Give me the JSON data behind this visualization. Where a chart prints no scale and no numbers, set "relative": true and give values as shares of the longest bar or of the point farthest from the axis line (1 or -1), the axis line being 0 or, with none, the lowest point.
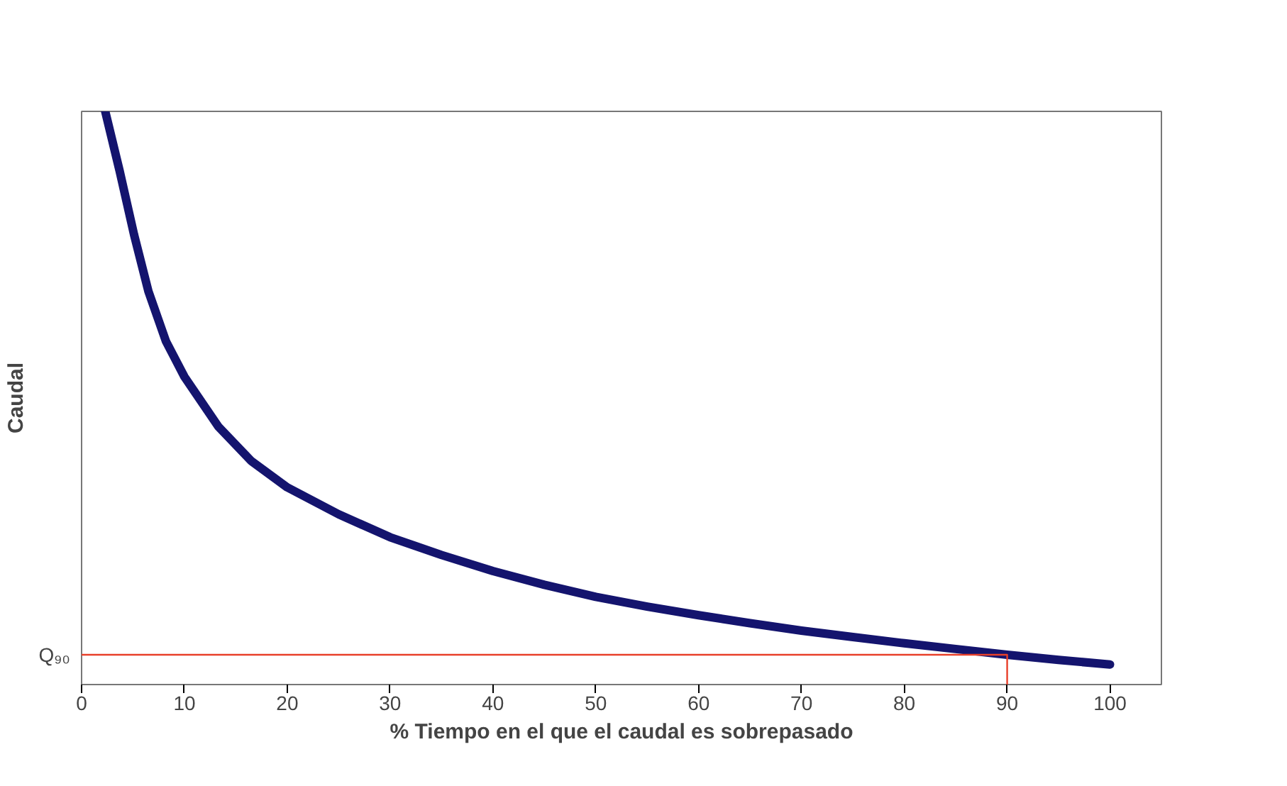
{
  "chart_data": {
    "type": "line",
    "xlabel": "% Tiempo en el que el caudal es sobrepasado",
    "ylabel": "Caudal",
    "relative": true,
    "xlim": [
      0,
      105
    ],
    "xticks": [
      0,
      10,
      20,
      30,
      40,
      50,
      60,
      70,
      80,
      90,
      100
    ],
    "grid": false,
    "marker": "none",
    "line_style": "solid",
    "series": [
      {
        "color": "#14146e",
        "x": [
          2.3,
          3.7,
          5.1,
          6.5,
          8.2,
          10,
          13.3,
          16.5,
          20,
          25,
          30,
          35,
          40,
          45,
          50,
          55,
          60,
          65,
          70,
          75,
          80,
          85,
          90,
          95,
          100
        ],
        "values": [
          1.0,
          0.896,
          0.785,
          0.686,
          0.599,
          0.537,
          0.45,
          0.39,
          0.344,
          0.297,
          0.257,
          0.226,
          0.198,
          0.174,
          0.153,
          0.136,
          0.121,
          0.107,
          0.094,
          0.083,
          0.072,
          0.062,
          0.052,
          0.043,
          0.035
        ]
      },
      {
        "color": "#e8402a",
        "x": [
          0,
          90,
          90
        ],
        "values": [
          0.052,
          0.052,
          0
        ]
      }
    ],
    "annotations": [
      {
        "text": "Q₉₀",
        "x": 0,
        "y": 0.052
      }
    ]
  }
}
